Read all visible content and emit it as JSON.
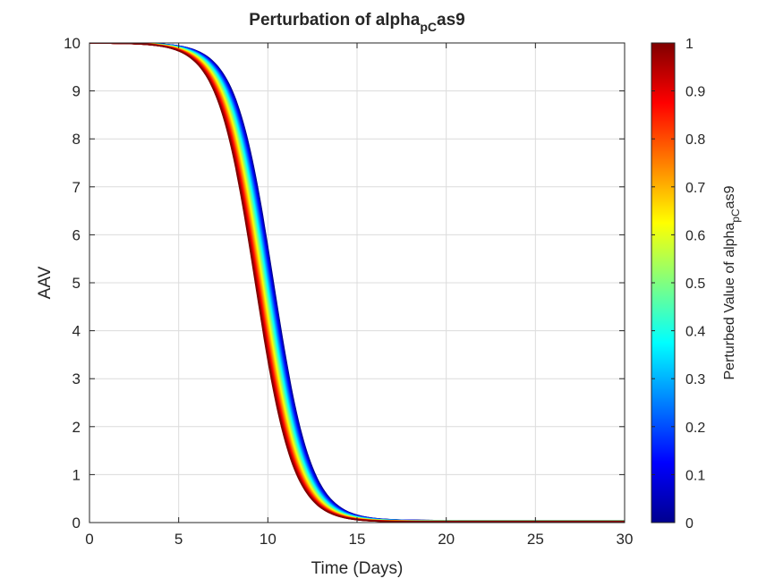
{
  "chart_data": {
    "type": "line",
    "title": {
      "main": "Perturbation of alpha",
      "sub": "pC",
      "tail": "as9"
    },
    "xlabel": "Time (Days)",
    "ylabel": "AAV",
    "xlim": [
      0,
      30
    ],
    "ylim": [
      0,
      10
    ],
    "xticks": [
      "0",
      "5",
      "10",
      "15",
      "20",
      "25",
      "30"
    ],
    "yticks": [
      "0",
      "1",
      "2",
      "3",
      "4",
      "5",
      "6",
      "7",
      "8",
      "9",
      "10"
    ],
    "grid": true,
    "curve_model": {
      "form": "logistic decay",
      "initial_value": 10,
      "final_value": 0.04,
      "midpoint_day_at_0": 10.3,
      "midpoint_day_at_1": 9.3,
      "steepness_per_day": 0.95,
      "curves_drawn": 60
    },
    "series_note": "family of AAV curves, one per perturbed value of alpha_pC_as9 from 0 to 1",
    "colorbar": {
      "colormap": "jet",
      "range": [
        0,
        1
      ],
      "ticks": [
        "0",
        "0.1",
        "0.2",
        "0.3",
        "0.4",
        "0.5",
        "0.6",
        "0.7",
        "0.8",
        "0.9",
        "1"
      ],
      "label": {
        "main": "Perturbed Value of alpha",
        "sub": "pC",
        "tail": "as9"
      }
    }
  }
}
